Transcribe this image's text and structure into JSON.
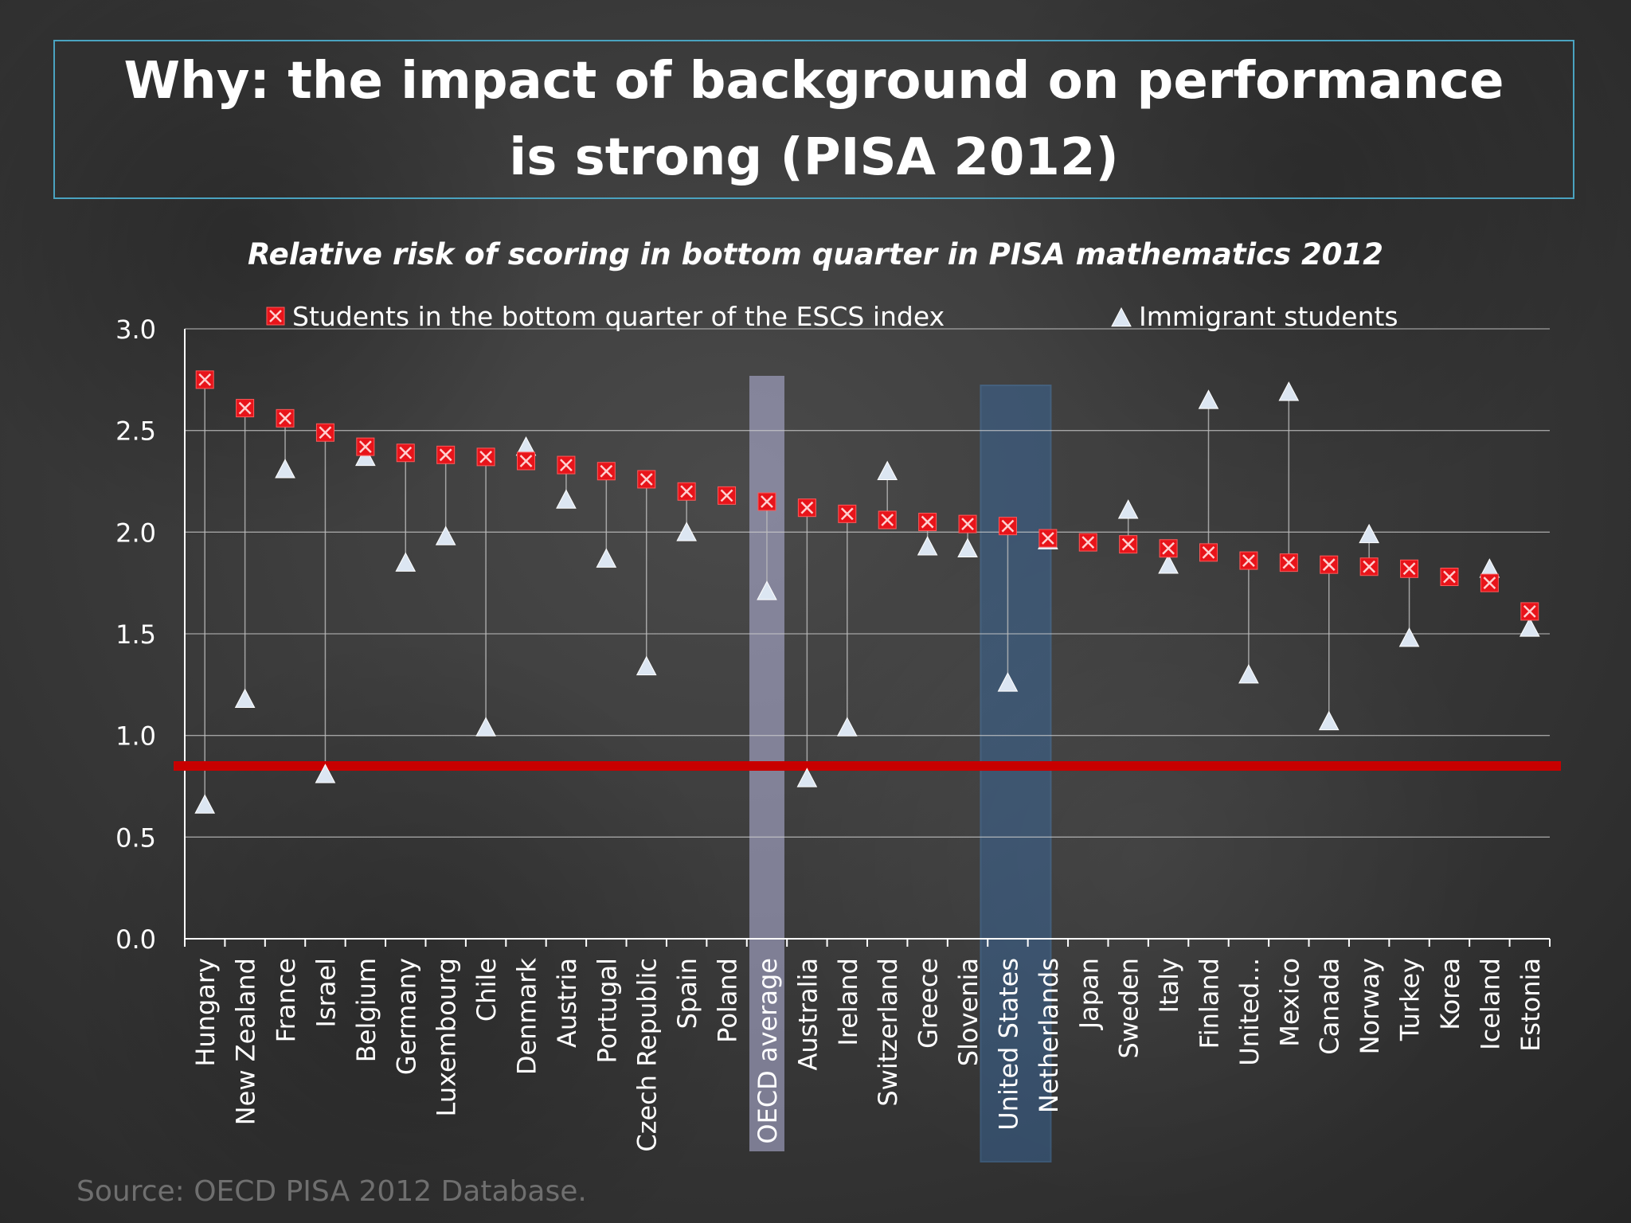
{
  "slide": {
    "title": "Why: the impact of background on performance is strong (PISA 2012)",
    "source": "Source: OECD PISA 2012 Database."
  },
  "chart_data": {
    "type": "scatter",
    "title": "Relative risk of scoring in bottom quarter in PISA mathematics 2012",
    "xlabel": "",
    "ylabel": "",
    "ylim": [
      0,
      3
    ],
    "yticks": [
      "0.0",
      "0.5",
      "1.0",
      "1.5",
      "2.0",
      "2.5",
      "3.0"
    ],
    "grid": true,
    "legend_position": "top",
    "categories": [
      "Hungary",
      "New Zealand",
      "France",
      "Israel",
      "Belgium",
      "Germany",
      "Luxembourg",
      "Chile",
      "Denmark",
      "Austria",
      "Portugal",
      "Czech Republic",
      "Spain",
      "Poland",
      "OECD average",
      "Australia",
      "Ireland",
      "Switzerland",
      "Greece",
      "Slovenia",
      "United States",
      "Netherlands",
      "Japan",
      "Sweden",
      "Italy",
      "Finland",
      "United...",
      "Mexico",
      "Canada",
      "Norway",
      "Turkey",
      "Korea",
      "Iceland",
      "Estonia"
    ],
    "series": [
      {
        "name": "Students in the bottom quarter of the ESCS index",
        "marker": "x-square",
        "color": "#e8141a",
        "values": [
          2.75,
          2.61,
          2.56,
          2.49,
          2.42,
          2.39,
          2.38,
          2.37,
          2.35,
          2.33,
          2.3,
          2.26,
          2.2,
          2.18,
          2.15,
          2.12,
          2.09,
          2.06,
          2.05,
          2.04,
          2.03,
          1.97,
          1.95,
          1.94,
          1.92,
          1.9,
          1.86,
          1.85,
          1.84,
          1.83,
          1.82,
          1.78,
          1.75,
          1.61
        ]
      },
      {
        "name": "Immigrant students",
        "marker": "triangle",
        "color": "#dce6f2",
        "values": [
          0.66,
          1.18,
          2.31,
          0.81,
          2.37,
          1.85,
          1.98,
          1.04,
          2.42,
          2.16,
          1.87,
          1.34,
          2.0,
          null,
          1.71,
          0.79,
          1.04,
          2.3,
          1.93,
          1.92,
          1.26,
          1.96,
          null,
          2.11,
          1.84,
          2.65,
          1.3,
          2.69,
          1.07,
          1.99,
          1.48,
          null,
          1.82,
          1.53
        ]
      }
    ],
    "reference_line": {
      "value": 0.85,
      "color": "#c80000"
    },
    "highlights": [
      {
        "category": "OECD average",
        "color": "#b8b8e0"
      },
      {
        "category": "United States",
        "color": "#3a6ea8"
      }
    ],
    "colors": {
      "axis": "#ffffff",
      "grid": "#d0d0d0",
      "drop_line": "#bdbdbd"
    }
  }
}
